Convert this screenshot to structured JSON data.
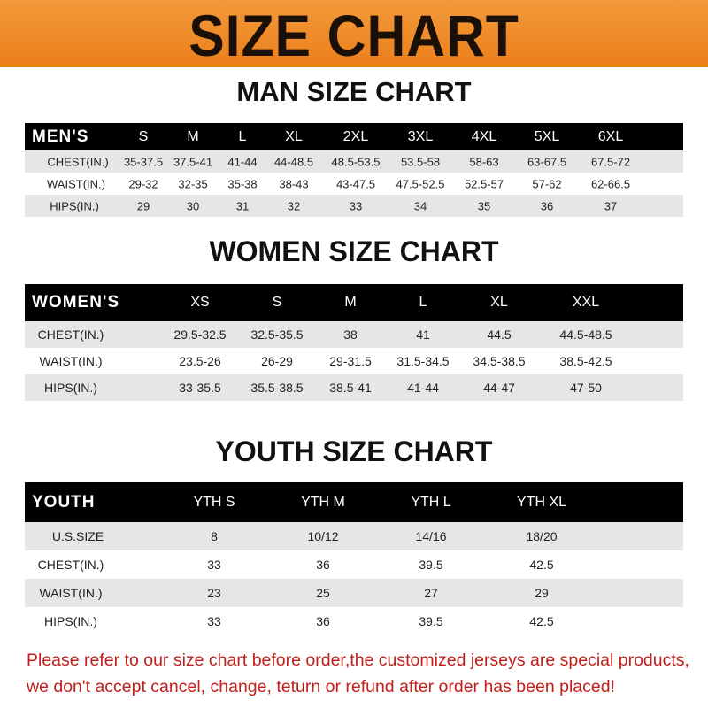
{
  "banner_title": "SIZE CHART",
  "men": {
    "title": "MAN SIZE CHART",
    "header": [
      "MEN'S",
      "S",
      "M",
      "L",
      "XL",
      "2XL",
      "3XL",
      "4XL",
      "5XL",
      "6XL"
    ],
    "rows": [
      [
        "CHEST(IN.)",
        "35-37.5",
        "37.5-41",
        "41-44",
        "44-48.5",
        "48.5-53.5",
        "53.5-58",
        "58-63",
        "63-67.5",
        "67.5-72"
      ],
      [
        "WAIST(IN.)",
        "29-32",
        "32-35",
        "35-38",
        "38-43",
        "43-47.5",
        "47.5-52.5",
        "52.5-57",
        "57-62",
        "62-66.5"
      ],
      [
        "HIPS(IN.)",
        "29",
        "30",
        "31",
        "32",
        "33",
        "34",
        "35",
        "36",
        "37"
      ]
    ]
  },
  "women": {
    "title": "WOMEN SIZE CHART",
    "header": [
      "WOMEN'S",
      "XS",
      "S",
      "M",
      "L",
      "XL",
      "XXL"
    ],
    "rows": [
      [
        "CHEST(IN.)",
        "29.5-32.5",
        "32.5-35.5",
        "38",
        "41",
        "44.5",
        "44.5-48.5"
      ],
      [
        "WAIST(IN.)",
        "23.5-26",
        "26-29",
        "29-31.5",
        "31.5-34.5",
        "34.5-38.5",
        "38.5-42.5"
      ],
      [
        "HIPS(IN.)",
        "33-35.5",
        "35.5-38.5",
        "38.5-41",
        "41-44",
        "44-47",
        "47-50"
      ]
    ]
  },
  "youth": {
    "title": "YOUTH SIZE CHART",
    "header": [
      "YOUTH",
      "YTH S",
      "YTH M",
      "YTH L",
      "YTH XL"
    ],
    "rows": [
      [
        "U.S.SIZE",
        "8",
        "10/12",
        "14/16",
        "18/20"
      ],
      [
        "CHEST(IN.)",
        "33",
        "36",
        "39.5",
        "42.5"
      ],
      [
        "WAIST(IN.)",
        "23",
        "25",
        "27",
        "29"
      ],
      [
        "HIPS(IN.)",
        "33",
        "36",
        "39.5",
        "42.5"
      ]
    ]
  },
  "footer": {
    "line1": "Please refer to our size chart before order,the customized jerseys are special products,",
    "line2": "we don't accept cancel, change, teturn or refund after order has been placed!"
  },
  "colors": {
    "banner": "#ec7f1c",
    "header_row": "#000000",
    "stripe": "#e6e6e6",
    "footer_text": "#c0201b"
  }
}
